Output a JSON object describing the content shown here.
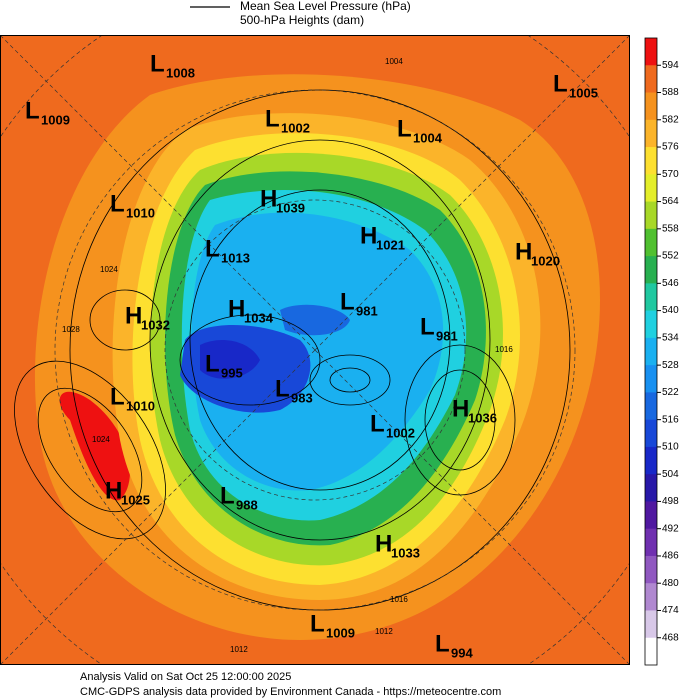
{
  "header": {
    "legend_line_1": "Mean Sea Level Pressure (hPa)",
    "legend_line_2": "500-hPa Heights (dam)"
  },
  "colorbar": {
    "labels": [
      594,
      588,
      582,
      576,
      570,
      564,
      558,
      552,
      546,
      540,
      534,
      528,
      522,
      516,
      510,
      504,
      498,
      492,
      486,
      480,
      474,
      468
    ],
    "colors": [
      "#ee1111",
      "#ef6a1e",
      "#f5921e",
      "#fbb42a",
      "#fde030",
      "#e4ee2a",
      "#a8d828",
      "#50c030",
      "#28b050",
      "#20c8a0",
      "#20d0e0",
      "#1ab0f0",
      "#1890f0",
      "#1868e0",
      "#1848d8",
      "#1828c8",
      "#2818a8",
      "#5018a0",
      "#7030b0",
      "#9058c0",
      "#b088d0",
      "#d8c8e8",
      "#ffffff"
    ]
  },
  "centers": [
    {
      "kind": "L",
      "value": 1008
    },
    {
      "kind": "L",
      "value": 1009
    },
    {
      "kind": "L",
      "value": 1002
    },
    {
      "kind": "L",
      "value": 1004
    },
    {
      "kind": "L",
      "value": 1005
    },
    {
      "kind": "L",
      "value": 1010
    },
    {
      "kind": "H",
      "value": 1039
    },
    {
      "kind": "H",
      "value": 1021
    },
    {
      "kind": "H",
      "value": 1020
    },
    {
      "kind": "L",
      "value": 1013
    },
    {
      "kind": "H",
      "value": 1032
    },
    {
      "kind": "H",
      "value": 1034
    },
    {
      "kind": "L",
      "value": 981
    },
    {
      "kind": "L",
      "value": 981
    },
    {
      "kind": "L",
      "value": 995
    },
    {
      "kind": "L",
      "value": 983
    },
    {
      "kind": "L",
      "value": 1010
    },
    {
      "kind": "L",
      "value": 1002
    },
    {
      "kind": "H",
      "value": 1036
    },
    {
      "kind": "H",
      "value": 1025
    },
    {
      "kind": "L",
      "value": 988
    },
    {
      "kind": "H",
      "value": 1033
    },
    {
      "kind": "L",
      "value": 1009
    },
    {
      "kind": "L",
      "value": 994
    }
  ],
  "isobar_labels": [
    1004,
    1024,
    1028,
    1016,
    1024,
    1016,
    1012,
    1012
  ],
  "footer": {
    "line_1": "Analysis Valid on Sat Oct 25 12:00:00 2025",
    "line_2": "CMC-GDPS analysis data provided by Environment Canada - https://meteocentre.com"
  }
}
